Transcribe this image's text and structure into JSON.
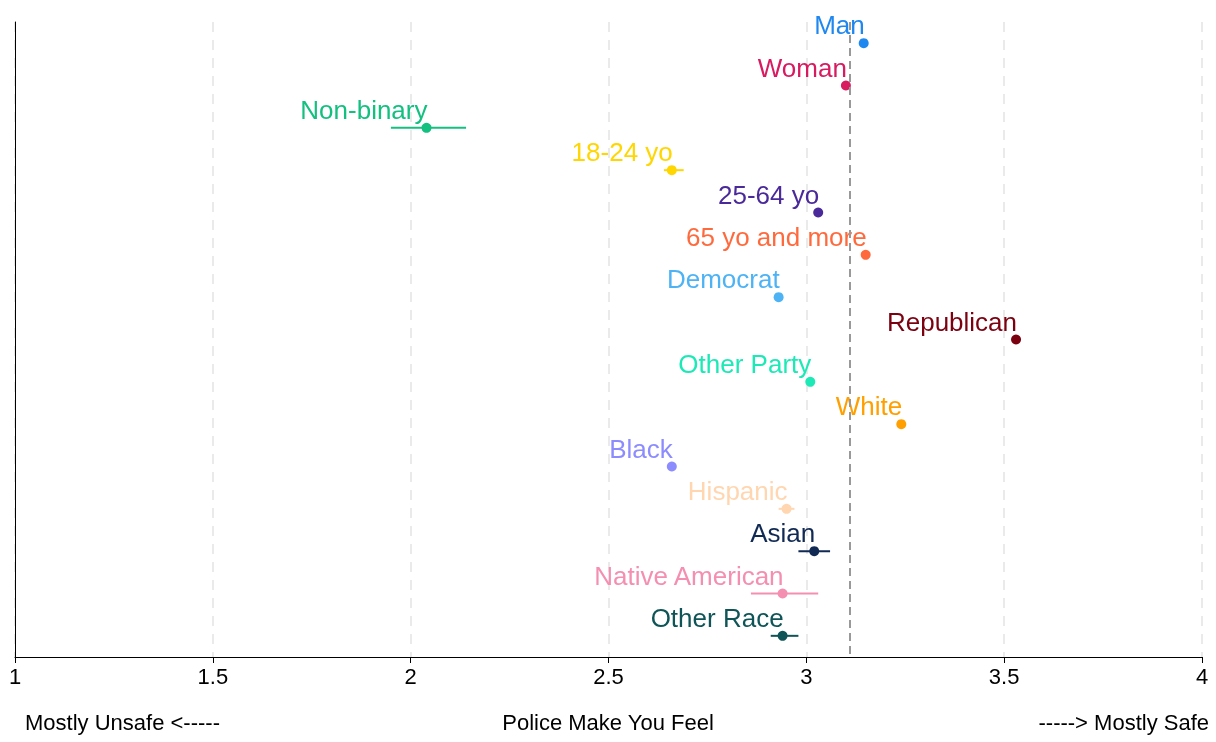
{
  "chart_data": {
    "type": "scatter",
    "orientation": "horizontal",
    "xlabel": "Police Make You Feel",
    "annotations": [
      "Mostly Unsafe <-----",
      "-----> Mostly Safe"
    ],
    "categories": [
      null,
      null,
      null,
      null,
      null,
      null,
      null,
      null,
      null,
      null,
      null,
      null,
      null,
      null,
      null
    ],
    "series": [
      {
        "name": "Man",
        "color": "#1e88f0",
        "values": [
          3.145,
          null,
          null,
          null,
          null,
          null,
          null,
          null,
          null,
          null,
          null,
          null,
          null,
          null,
          null
        ]
      },
      {
        "name": "Woman",
        "color": "#d81b60",
        "values": [
          null,
          3.1,
          null,
          null,
          null,
          null,
          null,
          null,
          null,
          null,
          null,
          null,
          null,
          null,
          null
        ]
      },
      {
        "name": "Non-binary",
        "color": "#14c080",
        "values": [
          null,
          null,
          2.04,
          null,
          null,
          null,
          null,
          null,
          null,
          null,
          null,
          null,
          null,
          null,
          null
        ],
        "errors": [
          null,
          null,
          [
            1.95,
            2.14
          ],
          null,
          null,
          null,
          null,
          null,
          null,
          null,
          null,
          null,
          null,
          null,
          null
        ]
      },
      {
        "name": "18-24 yo",
        "color": "#ffd600",
        "values": [
          null,
          null,
          null,
          2.66,
          null,
          null,
          null,
          null,
          null,
          null,
          null,
          null,
          null,
          null,
          null
        ],
        "errors": [
          null,
          null,
          null,
          [
            2.64,
            2.69
          ],
          null,
          null,
          null,
          null,
          null,
          null,
          null,
          null,
          null,
          null,
          null
        ]
      },
      {
        "name": "25-64 yo",
        "color": "#4a2a9a",
        "values": [
          null,
          null,
          null,
          null,
          3.03,
          null,
          null,
          null,
          null,
          null,
          null,
          null,
          null,
          null,
          null
        ]
      },
      {
        "name": "65 yo and more",
        "color": "#ff6a3d",
        "values": [
          null,
          null,
          null,
          null,
          null,
          3.15,
          null,
          null,
          null,
          null,
          null,
          null,
          null,
          null,
          null
        ]
      },
      {
        "name": "Democrat",
        "color": "#4db3f5",
        "values": [
          null,
          null,
          null,
          null,
          null,
          null,
          2.93,
          null,
          null,
          null,
          null,
          null,
          null,
          null,
          null
        ]
      },
      {
        "name": "Republican",
        "color": "#7b0010",
        "values": [
          null,
          null,
          null,
          null,
          null,
          null,
          null,
          3.53,
          null,
          null,
          null,
          null,
          null,
          null,
          null
        ]
      },
      {
        "name": "Other Party",
        "color": "#1de9b6",
        "values": [
          null,
          null,
          null,
          null,
          null,
          null,
          null,
          null,
          3.01,
          null,
          null,
          null,
          null,
          null,
          null
        ]
      },
      {
        "name": "White",
        "color": "#ffa000",
        "values": [
          null,
          null,
          null,
          null,
          null,
          null,
          null,
          null,
          null,
          3.24,
          null,
          null,
          null,
          null,
          null
        ]
      },
      {
        "name": "Black",
        "color": "#8c8cff",
        "values": [
          null,
          null,
          null,
          null,
          null,
          null,
          null,
          null,
          null,
          null,
          2.66,
          null,
          null,
          null,
          null
        ],
        "errors": [
          null,
          null,
          null,
          null,
          null,
          null,
          null,
          null,
          null,
          null,
          [
            2.65,
            2.67
          ],
          null,
          null,
          null,
          null
        ]
      },
      {
        "name": "Hispanic",
        "color": "#ffd6b0",
        "values": [
          null,
          null,
          null,
          null,
          null,
          null,
          null,
          null,
          null,
          null,
          null,
          2.95,
          null,
          null,
          null
        ],
        "errors": [
          null,
          null,
          null,
          null,
          null,
          null,
          null,
          null,
          null,
          null,
          null,
          [
            2.93,
            2.97
          ],
          null,
          null,
          null
        ]
      },
      {
        "name": "Asian",
        "color": "#102a54",
        "values": [
          null,
          null,
          null,
          null,
          null,
          null,
          null,
          null,
          null,
          null,
          null,
          null,
          3.02,
          null,
          null
        ],
        "errors": [
          null,
          null,
          null,
          null,
          null,
          null,
          null,
          null,
          null,
          null,
          null,
          null,
          [
            2.98,
            3.06
          ],
          null,
          null
        ]
      },
      {
        "name": "Native American",
        "color": "#f48fb1",
        "values": [
          null,
          null,
          null,
          null,
          null,
          null,
          null,
          null,
          null,
          null,
          null,
          null,
          null,
          2.94,
          null
        ],
        "errors": [
          null,
          null,
          null,
          null,
          null,
          null,
          null,
          null,
          null,
          null,
          null,
          null,
          null,
          [
            2.86,
            3.03
          ],
          null
        ]
      },
      {
        "name": "Other Race",
        "color": "#0f5557",
        "values": [
          null,
          null,
          null,
          null,
          null,
          null,
          null,
          null,
          null,
          null,
          null,
          null,
          null,
          null,
          2.94
        ],
        "errors": [
          null,
          null,
          null,
          null,
          null,
          null,
          null,
          null,
          null,
          null,
          null,
          null,
          null,
          null,
          [
            2.91,
            2.98
          ]
        ]
      }
    ],
    "xlim": [
      1,
      4
    ],
    "xticks": [
      1,
      1.5,
      2,
      2.5,
      3,
      3.5,
      4
    ],
    "grid": "x",
    "legend": false,
    "tick_labels": "x",
    "marker": "circle",
    "ref_lines": [
      {
        "axis": "x",
        "value": 3.11,
        "color": "#999999",
        "line_style": "dashed"
      }
    ]
  }
}
